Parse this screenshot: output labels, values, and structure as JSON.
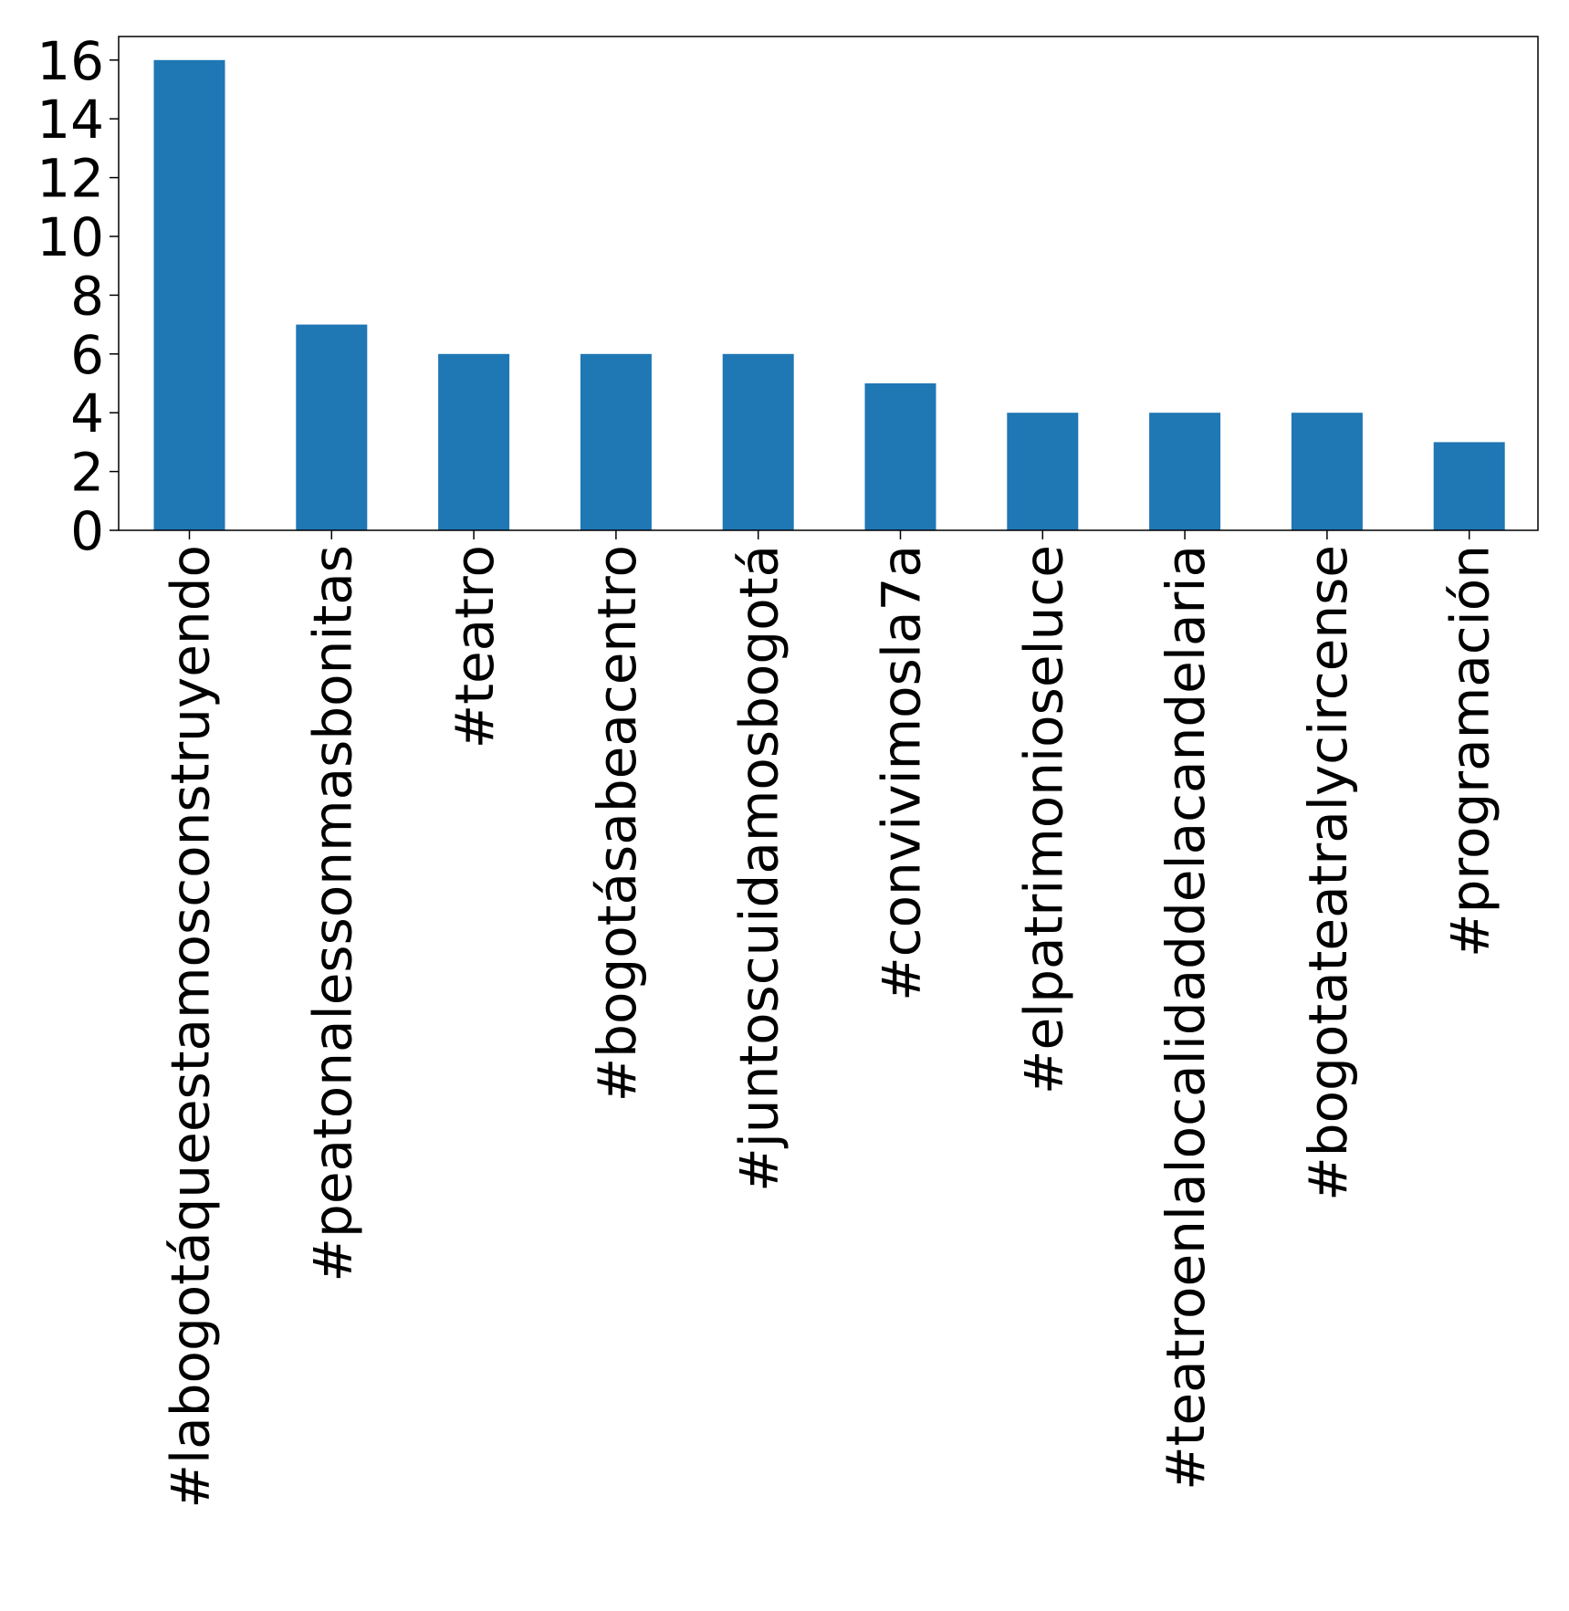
{
  "chart_data": {
    "type": "bar",
    "title": "",
    "xlabel": "",
    "ylabel": "",
    "categories": [
      "#labogotáqueestamosconstruyendo",
      "#peatonalessonmasbonitas",
      "#teatro",
      "#bogotásabeacentro",
      "#juntoscuidamosbogotá",
      "#convivimosla7a",
      "#elpatrimonioseluce",
      "#teatroenlalocalidaddelacandelaria",
      "#bogotateatralycircense",
      "#programación"
    ],
    "values": [
      16,
      7,
      6,
      6,
      6,
      5,
      4,
      4,
      4,
      3
    ],
    "ylim": [
      0,
      16.8
    ],
    "yticks": [
      0,
      2,
      4,
      6,
      8,
      10,
      12,
      14,
      16
    ],
    "ytick_labels": [
      "0",
      "2",
      "4",
      "6",
      "8",
      "10",
      "12",
      "14",
      "16"
    ],
    "bar_color": "#1f77b4",
    "grid": false,
    "legend": "none"
  }
}
